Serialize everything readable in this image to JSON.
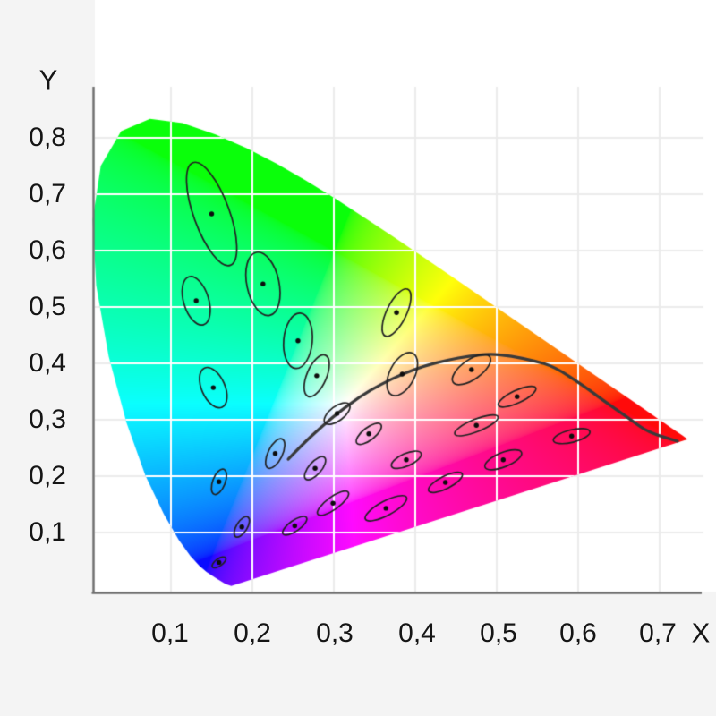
{
  "chart_data": {
    "type": "scatter",
    "subtype": "cie-1931-chromaticity-diagram-with-macadam-ellipses",
    "title": "",
    "xlabel": "X",
    "ylabel": "Y",
    "x_tick_labels": [
      "0,1",
      "0,2",
      "0,3",
      "0,4",
      "0,5",
      "0,6",
      "0,7"
    ],
    "y_tick_labels": [
      "0,8",
      "0,7",
      "0,6",
      "0,5",
      "0,4",
      "0,3",
      "0,2",
      "0,1"
    ],
    "x_tick_values": [
      0.1,
      0.2,
      0.3,
      0.4,
      0.5,
      0.6,
      0.7
    ],
    "y_tick_values": [
      0.8,
      0.7,
      0.6,
      0.5,
      0.4,
      0.3,
      0.2,
      0.1
    ],
    "xlim": [
      0,
      0.75
    ],
    "ylim": [
      0,
      0.89
    ],
    "grid": true,
    "legend": "none",
    "colors": {
      "background": "#f4f4f4",
      "plot_background": "#ffffff",
      "grid_outer": "#ebebeb",
      "grid_inner": "#ffffff",
      "axis": "#6e6e6e",
      "curve": "#3a3a3a",
      "ellipse_stroke": "#222222",
      "point": "#0d0d0d"
    },
    "spectral_locus": [
      [
        0.1741,
        0.005
      ],
      [
        0.1669,
        0.0086
      ],
      [
        0.1566,
        0.0177
      ],
      [
        0.144,
        0.0297
      ],
      [
        0.1355,
        0.0399
      ],
      [
        0.1241,
        0.0578
      ],
      [
        0.1096,
        0.0868
      ],
      [
        0.0913,
        0.1327
      ],
      [
        0.0687,
        0.2007
      ],
      [
        0.0454,
        0.295
      ],
      [
        0.0235,
        0.4127
      ],
      [
        0.0082,
        0.5384
      ],
      [
        0.0039,
        0.6548
      ],
      [
        0.0139,
        0.7502
      ],
      [
        0.0389,
        0.812
      ],
      [
        0.0743,
        0.8338
      ],
      [
        0.1142,
        0.8262
      ],
      [
        0.1547,
        0.8059
      ],
      [
        0.1929,
        0.7816
      ],
      [
        0.2296,
        0.7543
      ],
      [
        0.2658,
        0.7243
      ],
      [
        0.3016,
        0.6923
      ],
      [
        0.3373,
        0.6589
      ],
      [
        0.3731,
        0.6245
      ],
      [
        0.4087,
        0.5896
      ],
      [
        0.4441,
        0.5547
      ],
      [
        0.4788,
        0.5202
      ],
      [
        0.5125,
        0.4866
      ],
      [
        0.5448,
        0.4544
      ],
      [
        0.5752,
        0.4242
      ],
      [
        0.6029,
        0.3965
      ],
      [
        0.627,
        0.3725
      ],
      [
        0.6482,
        0.3514
      ],
      [
        0.6658,
        0.334
      ],
      [
        0.6801,
        0.3197
      ],
      [
        0.6915,
        0.3083
      ],
      [
        0.7006,
        0.2993
      ],
      [
        0.7079,
        0.292
      ],
      [
        0.714,
        0.2859
      ],
      [
        0.719,
        0.2809
      ],
      [
        0.723,
        0.277
      ],
      [
        0.7283,
        0.2717
      ],
      [
        0.732,
        0.268
      ],
      [
        0.734,
        0.266
      ],
      [
        0.7347,
        0.2653
      ]
    ],
    "planckian_locus": [
      [
        0.244,
        0.23
      ],
      [
        0.262,
        0.257
      ],
      [
        0.283,
        0.285
      ],
      [
        0.304,
        0.311
      ],
      [
        0.332,
        0.341
      ],
      [
        0.358,
        0.363
      ],
      [
        0.384,
        0.381
      ],
      [
        0.412,
        0.396
      ],
      [
        0.44,
        0.406
      ],
      [
        0.466,
        0.413
      ],
      [
        0.492,
        0.417
      ],
      [
        0.518,
        0.413
      ],
      [
        0.545,
        0.405
      ],
      [
        0.571,
        0.394
      ],
      [
        0.608,
        0.359
      ],
      [
        0.63,
        0.335
      ],
      [
        0.663,
        0.302
      ],
      [
        0.685,
        0.278
      ],
      [
        0.722,
        0.262
      ]
    ],
    "macadam_ellipses": [
      {
        "x": 0.15,
        "y": 0.665,
        "a": 61,
        "b": 20,
        "angle": 70
      },
      {
        "x": 0.213,
        "y": 0.541,
        "a": 36,
        "b": 18,
        "angle": 78
      },
      {
        "x": 0.131,
        "y": 0.511,
        "a": 28,
        "b": 14,
        "angle": 73
      },
      {
        "x": 0.152,
        "y": 0.357,
        "a": 24,
        "b": 13,
        "angle": 66
      },
      {
        "x": 0.256,
        "y": 0.44,
        "a": 31,
        "b": 16,
        "angle": 95
      },
      {
        "x": 0.279,
        "y": 0.378,
        "a": 25,
        "b": 11,
        "angle": -67
      },
      {
        "x": 0.377,
        "y": 0.49,
        "a": 29,
        "b": 11,
        "angle": -64
      },
      {
        "x": 0.384,
        "y": 0.381,
        "a": 26,
        "b": 14,
        "angle": -63
      },
      {
        "x": 0.304,
        "y": 0.311,
        "a": 17,
        "b": 8,
        "angle": -37
      },
      {
        "x": 0.228,
        "y": 0.24,
        "a": 18,
        "b": 8,
        "angle": -64
      },
      {
        "x": 0.343,
        "y": 0.275,
        "a": 17,
        "b": 7,
        "angle": -38
      },
      {
        "x": 0.389,
        "y": 0.229,
        "a": 18,
        "b": 7,
        "angle": -24
      },
      {
        "x": 0.469,
        "y": 0.389,
        "a": 25,
        "b": 11,
        "angle": -35
      },
      {
        "x": 0.525,
        "y": 0.341,
        "a": 23,
        "b": 7,
        "angle": -25
      },
      {
        "x": 0.475,
        "y": 0.29,
        "a": 26,
        "b": 7,
        "angle": -22
      },
      {
        "x": 0.592,
        "y": 0.271,
        "a": 21,
        "b": 7,
        "angle": -14
      },
      {
        "x": 0.508,
        "y": 0.229,
        "a": 22,
        "b": 8,
        "angle": -22
      },
      {
        "x": 0.159,
        "y": 0.19,
        "a": 15,
        "b": 7,
        "angle": -69
      },
      {
        "x": 0.277,
        "y": 0.214,
        "a": 16,
        "b": 7,
        "angle": -49
      },
      {
        "x": 0.187,
        "y": 0.11,
        "a": 13,
        "b": 6,
        "angle": -58
      },
      {
        "x": 0.252,
        "y": 0.112,
        "a": 16,
        "b": 6,
        "angle": -35
      },
      {
        "x": 0.299,
        "y": 0.152,
        "a": 21,
        "b": 7,
        "angle": -36
      },
      {
        "x": 0.159,
        "y": 0.047,
        "a": 9,
        "b": 4,
        "angle": -35
      },
      {
        "x": 0.364,
        "y": 0.143,
        "a": 26,
        "b": 8,
        "angle": -28
      },
      {
        "x": 0.437,
        "y": 0.189,
        "a": 21,
        "b": 7,
        "angle": -27
      }
    ]
  }
}
